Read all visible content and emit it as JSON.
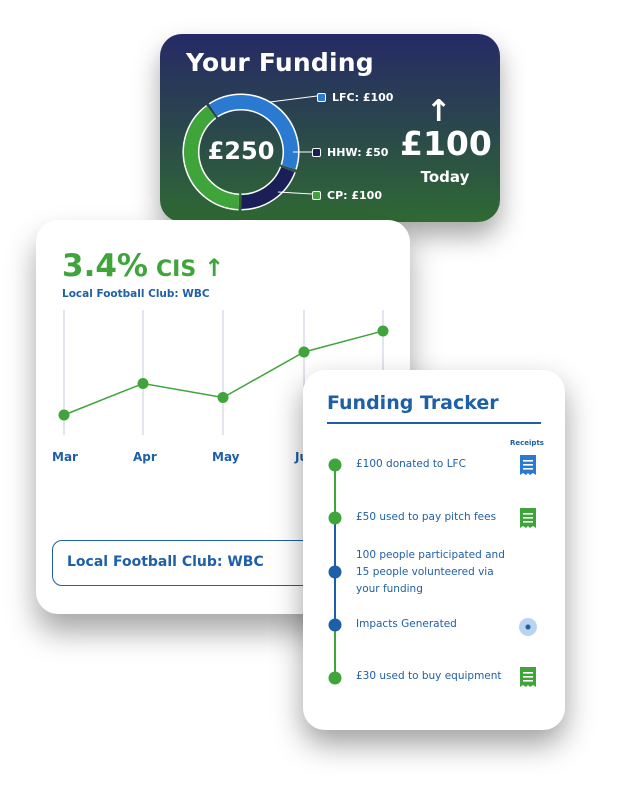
{
  "funding": {
    "title": "Your Funding",
    "total": "£250",
    "legend": [
      {
        "label": "LFC: £100",
        "value": 100,
        "color": "#2a7ad1"
      },
      {
        "label": "HHW: £50",
        "value": 50,
        "color": "#1a1f57"
      },
      {
        "label": "CP: £100",
        "value": 100,
        "color": "#3fa53a"
      }
    ],
    "today_amount": "£100",
    "today_label": "Today"
  },
  "cis": {
    "value": "3.4%",
    "unit": "CIS",
    "subtitle": "Local Football Club: WBC",
    "months": [
      "Mar",
      "Apr",
      "May",
      "Ju"
    ],
    "trend_values": [
      1.0,
      1.9,
      1.5,
      2.8,
      3.4
    ],
    "box_label": "Local Football Club: WBC"
  },
  "tracker": {
    "title": "Funding Tracker",
    "receipts_header": "Receipts",
    "events": [
      {
        "text": "£100 donated to LFC",
        "dot": "#3fa53a",
        "icon": "receipt-blue"
      },
      {
        "text": "£50 used to pay pitch fees",
        "dot": "#3fa53a",
        "icon": "receipt-green"
      },
      {
        "text": "100 people participated and 15 people volunteered via your funding",
        "dot": "#1f5fa8",
        "icon": ""
      },
      {
        "text": "Impacts Generated",
        "dot": "#1f5fa8",
        "icon": "target"
      },
      {
        "text": "£30 used to buy equipment",
        "dot": "#3fa53a",
        "icon": "receipt-green"
      }
    ]
  }
}
